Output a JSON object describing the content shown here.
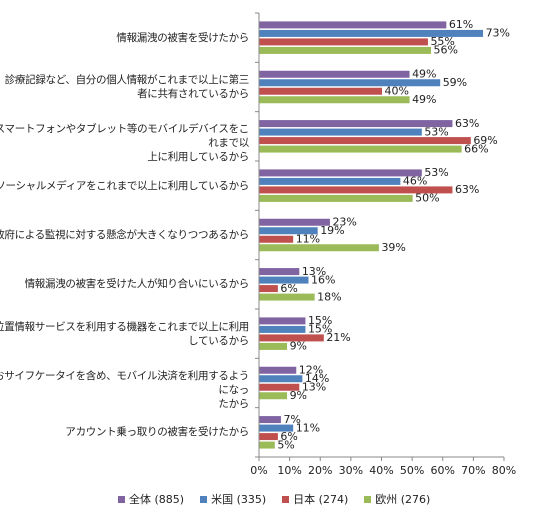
{
  "chart_data": {
    "type": "bar",
    "orientation": "horizontal",
    "categories": [
      [
        "情報漏洩の被害を受けたから"
      ],
      [
        "診療記録など、自分の個人情報がこれまで以上に第三",
        "者に共有されているから"
      ],
      [
        "スマートフォンやタブレット等のモバイルデバイスをこれまで以",
        "上に利用しているから"
      ],
      [
        "ソーシャルメディアをこれまで以上に利用しているから"
      ],
      [
        "政府による監視に対する懸念が大きくなりつつあるから"
      ],
      [
        "情報漏洩の被害を受けた人が知り合いにいるから"
      ],
      [
        "位置情報サービスを利用する機器をこれまで以上に利用",
        "しているから"
      ],
      [
        "おサイフケータイを含め、モバイル決済を利用するようになっ",
        "たから"
      ],
      [
        "アカウント乗っ取りの被害を受けたから"
      ]
    ],
    "series": [
      {
        "name": "全体 (885)",
        "color": "#8064a2",
        "values": [
          61,
          49,
          63,
          53,
          23,
          13,
          15,
          12,
          7
        ]
      },
      {
        "name": "米国 (335)",
        "color": "#4f81bd",
        "values": [
          73,
          59,
          53,
          46,
          19,
          16,
          15,
          14,
          11
        ]
      },
      {
        "name": "日本 (274)",
        "color": "#c0504d",
        "values": [
          55,
          40,
          69,
          63,
          11,
          6,
          21,
          13,
          6
        ]
      },
      {
        "name": "欧州 (276)",
        "color": "#9bbb59",
        "values": [
          56,
          49,
          66,
          50,
          39,
          18,
          9,
          9,
          5
        ]
      }
    ],
    "xlim": [
      0,
      80
    ],
    "xticks": [
      "0%",
      "10%",
      "20%",
      "30%",
      "40%",
      "50%",
      "60%",
      "70%",
      "80%"
    ],
    "value_suffix": "%",
    "grid": false,
    "legend_position": "bottom"
  }
}
